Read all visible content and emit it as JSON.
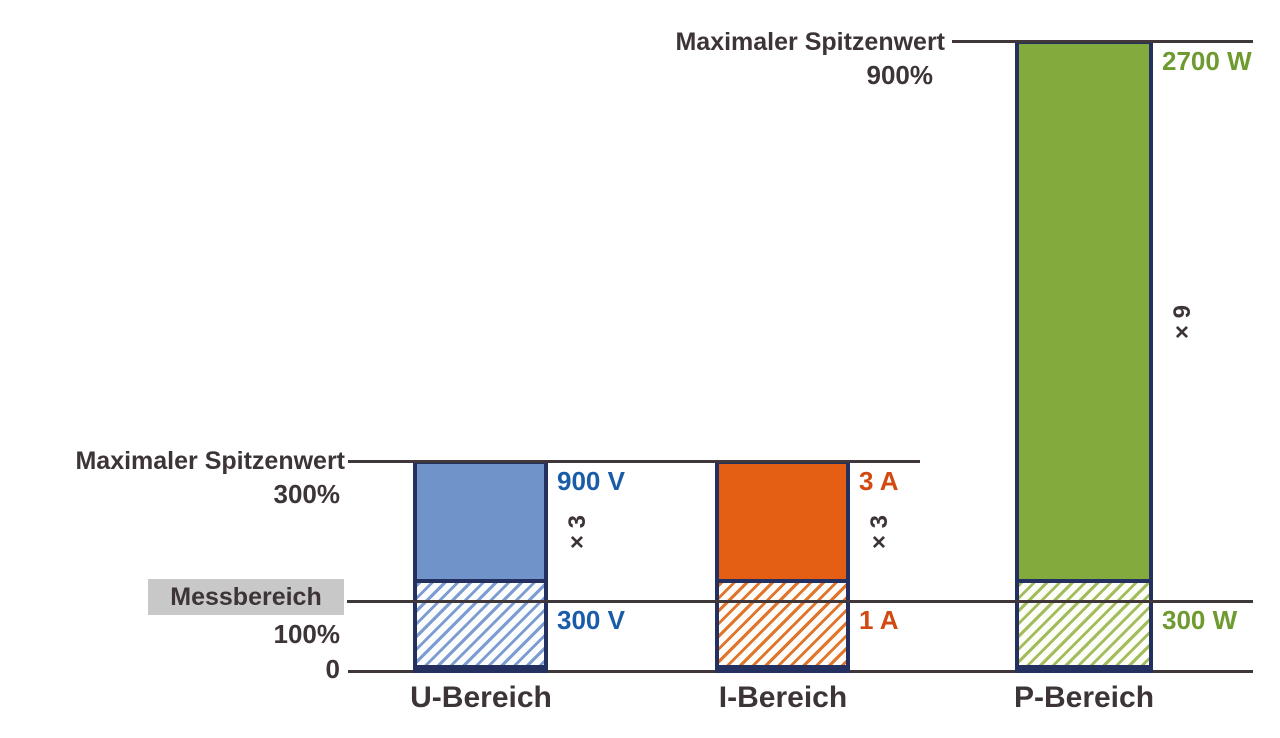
{
  "colors": {
    "text": "#3c3437",
    "line": "#3f3739",
    "border_navy": "#233060",
    "label_bg": "#c9c8c8",
    "blue_fill": "#7093c9",
    "blue_hatch": "#7d9cd1",
    "blue_text": "#1a5ca8",
    "orange_fill": "#e45e14",
    "orange_hatch": "#e0762e",
    "orange_text": "#d24a10",
    "green_fill": "#83aa3d",
    "green_hatch": "#a3bd5e",
    "green_text": "#6e9a2f"
  },
  "labels": {
    "max_peak_top": {
      "title": "Maximaler Spitzenwert",
      "percent": "900%"
    },
    "max_peak_mid": {
      "title": "Maximaler Spitzenwert",
      "percent": "300%"
    },
    "measure": {
      "title": "Messbereich",
      "percent": "100%"
    },
    "zero": "0"
  },
  "chart_data": {
    "type": "bar",
    "categories": [
      "U-Bereich",
      "I-Bereich",
      "P-Bereich"
    ],
    "yaxis": {
      "unit": "percent of measuring range",
      "ylim": [
        0,
        900
      ],
      "ticks": [
        0,
        100,
        300,
        900
      ],
      "tick_labels": [
        "0",
        "100%",
        "300%",
        "900%"
      ]
    },
    "reference_lines": [
      {
        "pct": 900,
        "label": "Maximaler Spitzenwert 900%"
      },
      {
        "pct": 300,
        "label": "Maximaler Spitzenwert 300%"
      },
      {
        "pct": 100,
        "label": "Messbereich 100%"
      },
      {
        "pct": 0,
        "label": "0"
      }
    ],
    "bars": [
      {
        "category": "U-Bereich",
        "color_key": "blue",
        "measure_pct": 100,
        "peak_pct": 300,
        "measure_value": "300 V",
        "peak_value": "900 V",
        "multiplier": "× 3"
      },
      {
        "category": "I-Bereich",
        "color_key": "orange",
        "measure_pct": 100,
        "peak_pct": 300,
        "measure_value": "1 A",
        "peak_value": "3 A",
        "multiplier": "× 3"
      },
      {
        "category": "P-Bereich",
        "color_key": "green",
        "measure_pct": 100,
        "peak_pct": 900,
        "measure_value": "300 W",
        "peak_value": "2700 W",
        "multiplier": "× 9"
      }
    ],
    "legend": null,
    "grid": false
  }
}
